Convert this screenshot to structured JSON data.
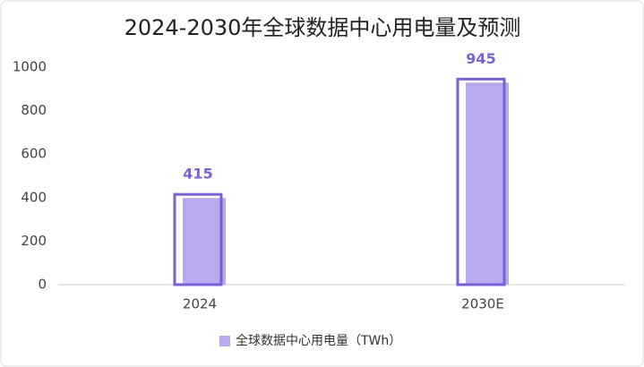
{
  "chart_data": {
    "type": "bar",
    "title": "2024-2030年全球数据中心用电量及预测",
    "categories": [
      "2024",
      "2030E"
    ],
    "series": [
      {
        "name": "全球数据中心用电量（TWh）",
        "color": "#b9aaf0",
        "values": [
          415,
          945
        ]
      }
    ],
    "ylim": [
      0,
      1000
    ],
    "yticks": [
      0,
      200,
      400,
      600,
      800,
      1000
    ],
    "grid": false,
    "legend": "bottom"
  }
}
